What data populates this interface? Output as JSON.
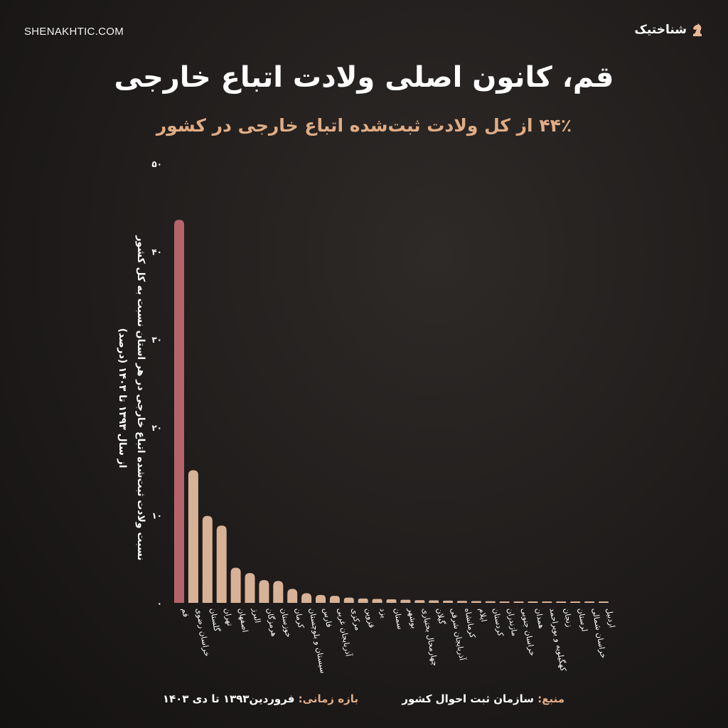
{
  "site_url": "SHENAKHTIC.COM",
  "logo": {
    "text": "شناختیک",
    "icon": "chess-knight-icon"
  },
  "title": "قم، کانون اصلی ولادت اتباع خارجی",
  "subtitle": "۴۴٪ از کل ولادت ثبت‌شده اتباع خارجی در کشور",
  "footer": {
    "source_key": "منبع:",
    "source_value": "سازمان ثبت احوال کشور",
    "period_key": "بازه زمانی:",
    "period_value": "فروردین۱۳۹۳ تا دی ۱۴۰۳"
  },
  "colors": {
    "highlight": "#b5646a",
    "bar": "#d8b297",
    "accent": "#e0ac85"
  },
  "chart_data": {
    "type": "bar",
    "title": "قم، کانون اصلی ولادت اتباع خارجی",
    "subtitle": "۴۴٪ از کل ولادت ثبت‌شده اتباع خارجی در کشور",
    "ylabel_line1": "نسبت ولادت ثبت‌شده اتباع خارجی در هر استان نسبت به کل کشور",
    "ylabel_line2": "از سال ۱۳۹۳ تا ۱۴۰۳ (درصد)",
    "ylim": [
      0,
      50
    ],
    "yticks": [
      0,
      10,
      20,
      30,
      40,
      50
    ],
    "ytick_labels": [
      "۰",
      "۱۰",
      "۲۰",
      "۳۰",
      "۴۰",
      "۵۰"
    ],
    "grid": false,
    "highlight_index": 0,
    "categories": [
      "قم",
      "خراسان رضوی",
      "گلستان",
      "تهران",
      "اصفهان",
      "البرز",
      "هرمزگان",
      "خوزستان",
      "کرمان",
      "سیستان و بلوچستان",
      "فارس",
      "آذربایجان غربی",
      "مرکزی",
      "قزوین",
      "یزد",
      "سمنان",
      "بوشهر",
      "چهارمحال بختیاری",
      "گیلان",
      "آذربایجان شرقی",
      "کرمانشاه",
      "ایلام",
      "کردستان",
      "مازندران",
      "خراسان جنوبی",
      "همدان",
      "کهگیلویه و بویراحمد",
      "زنجان",
      "لرستان",
      "خراسان شمالی",
      "اردبیل"
    ],
    "values": [
      43.6,
      15.1,
      9.9,
      8.8,
      4.0,
      3.4,
      2.6,
      2.5,
      1.6,
      1.1,
      0.9,
      0.8,
      0.6,
      0.5,
      0.45,
      0.4,
      0.35,
      0.3,
      0.28,
      0.25,
      0.22,
      0.2,
      0.18,
      0.16,
      0.14,
      0.12,
      0.1,
      0.09,
      0.08,
      0.07,
      0.06
    ]
  }
}
